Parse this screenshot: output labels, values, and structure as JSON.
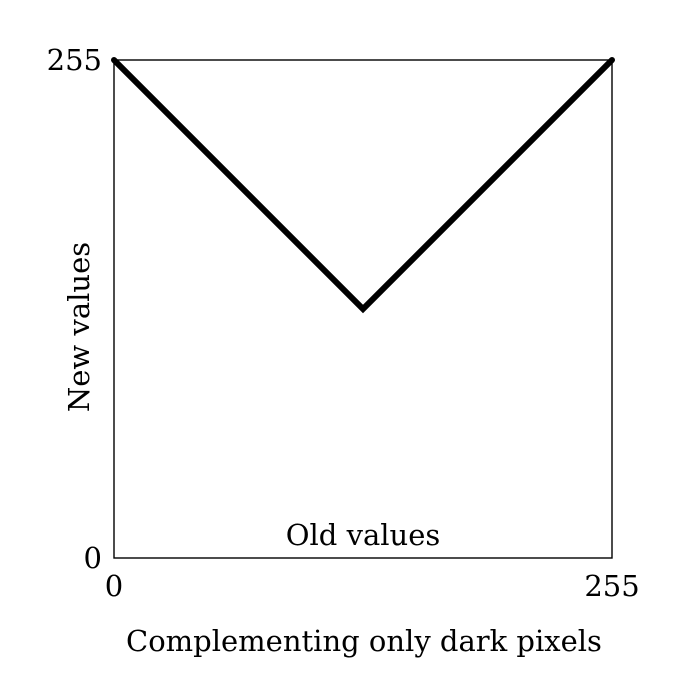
{
  "chart_data": {
    "type": "line",
    "title": "",
    "caption": "Complementing only dark pixels",
    "xlabel": "Old values",
    "ylabel": "New values",
    "xlim": [
      0,
      255
    ],
    "ylim": [
      0,
      255
    ],
    "x_ticks": [
      {
        "value": 0,
        "label": "0"
      },
      {
        "value": 255,
        "label": "255"
      }
    ],
    "y_ticks": [
      {
        "value": 0,
        "label": "0"
      },
      {
        "value": 255,
        "label": "255"
      }
    ],
    "grid": false,
    "series": [
      {
        "x": [
          0,
          127.5,
          255
        ],
        "y": [
          255,
          127.5,
          255
        ],
        "color": "#000000"
      }
    ]
  }
}
